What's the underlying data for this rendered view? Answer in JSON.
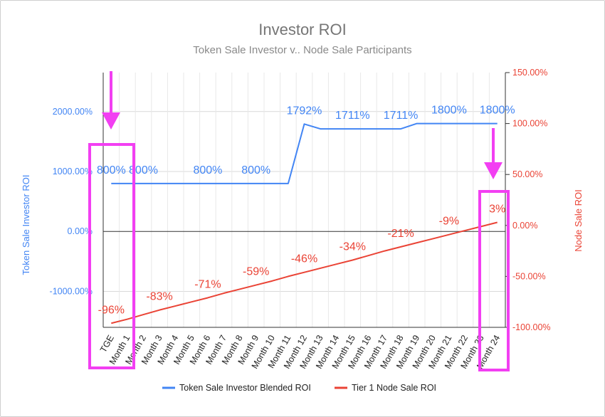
{
  "chart_data": {
    "type": "line",
    "title": "Investor ROI",
    "subtitle": "Token Sale Investor v.. Node Sale Participants",
    "categories": [
      "TGE",
      "Month 1",
      "Month 2",
      "Month 3",
      "Month 4",
      "Month 5",
      "Month 6",
      "Month 7",
      "Month 8",
      "Month 9",
      "Month 10",
      "Month 11",
      "Month 12",
      "Month 13",
      "Month 14",
      "Month 15",
      "Month 16",
      "Month 17",
      "Month 18",
      "Month 19",
      "Month 20",
      "Month 21",
      "Month 22",
      "Month 23",
      "Month 24"
    ],
    "left_axis": {
      "title": "Token Sale Investor ROI",
      "range": [
        -1600,
        2650
      ],
      "ticks": [
        -1000,
        0,
        1000,
        2000
      ],
      "tick_labels": [
        "-1000.00%",
        "0.00%",
        "1000.00%",
        "2000.00%"
      ],
      "color": "#4285f4"
    },
    "right_axis": {
      "title": "Node Sale ROI",
      "range": [
        -100,
        150
      ],
      "ticks": [
        -100,
        -50,
        0,
        50,
        100,
        150
      ],
      "tick_labels": [
        "-100.00%",
        "-50.00%",
        "0.00%",
        "50.00%",
        "100.00%",
        "150.00%"
      ],
      "color": "#ea4335"
    },
    "grid": true,
    "legend_position": "bottom",
    "series": [
      {
        "name": "Token Sale Investor Blended ROI",
        "axis": "left",
        "color": "#4285f4",
        "values": [
          800,
          800,
          800,
          800,
          800,
          800,
          800,
          800,
          800,
          800,
          800,
          800,
          1792,
          1711,
          1711,
          1711,
          1711,
          1711,
          1711,
          1800,
          1800,
          1800,
          1800,
          1800,
          1800
        ],
        "data_labels": [
          {
            "index": 0,
            "text": "800%"
          },
          {
            "index": 2,
            "text": "800%"
          },
          {
            "index": 6,
            "text": "800%"
          },
          {
            "index": 9,
            "text": "800%"
          },
          {
            "index": 12,
            "text": "1792%"
          },
          {
            "index": 15,
            "text": "1711%"
          },
          {
            "index": 18,
            "text": "1711%"
          },
          {
            "index": 21,
            "text": "1800%"
          },
          {
            "index": 24,
            "text": "1800%"
          }
        ]
      },
      {
        "name": "Tier 1 Node Sale ROI",
        "axis": "right",
        "color": "#ea4335",
        "values": [
          -96,
          -92,
          -87.5,
          -83,
          -79,
          -75,
          -71,
          -66.5,
          -62.5,
          -58.5,
          -54.5,
          -50,
          -46,
          -42,
          -38,
          -34,
          -29.5,
          -25,
          -21,
          -17,
          -13,
          -9,
          -5,
          -1,
          3
        ],
        "data_labels": [
          {
            "index": 0,
            "text": "-96%"
          },
          {
            "index": 3,
            "text": "-83%"
          },
          {
            "index": 6,
            "text": "-71%"
          },
          {
            "index": 9,
            "text": "-59%"
          },
          {
            "index": 12,
            "text": "-46%"
          },
          {
            "index": 15,
            "text": "-34%"
          },
          {
            "index": 18,
            "text": "-21%"
          },
          {
            "index": 21,
            "text": "-9%"
          },
          {
            "index": 24,
            "text": "3%"
          }
        ]
      }
    ],
    "annotations": {
      "highlight_color": "#f23ff2"
    }
  }
}
